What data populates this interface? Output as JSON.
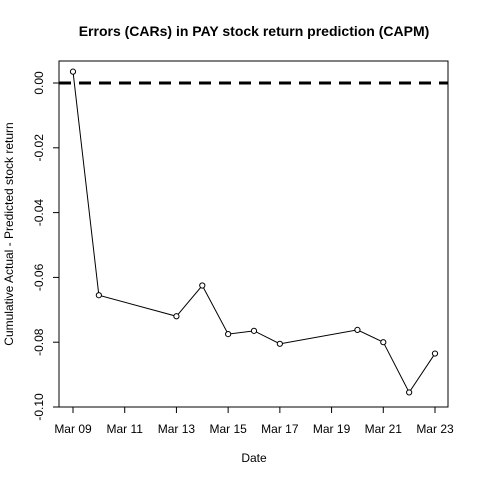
{
  "chart_data": {
    "type": "line",
    "title": "Errors (CARs) in PAY stock return prediction (CAPM)",
    "xlabel": "Date",
    "ylabel": "Cumulative Actual - Predicted stock return",
    "x_ticks": [
      "Mar 09",
      "Mar 11",
      "Mar 13",
      "Mar 15",
      "Mar 17",
      "Mar 19",
      "Mar 21",
      "Mar 23"
    ],
    "y_ticks": [
      "0.00",
      "-0.02",
      "-0.04",
      "-0.06",
      "-0.08",
      "-0.10"
    ],
    "y_tick_values": [
      0.0,
      -0.02,
      -0.04,
      -0.06,
      -0.08,
      -0.1
    ],
    "ylim": [
      -0.1,
      0.004
    ],
    "xlim": [
      "Mar 09",
      "Mar 23"
    ],
    "grid": false,
    "reference_line": {
      "y": 0.0,
      "style": "dashed"
    },
    "series": [
      {
        "x": [
          "Mar 09",
          "Mar 10",
          "Mar 13",
          "Mar 14",
          "Mar 15",
          "Mar 16",
          "Mar 17",
          "Mar 20",
          "Mar 21",
          "Mar 22",
          "Mar 23"
        ],
        "values": [
          0.0035,
          -0.0655,
          -0.072,
          -0.0625,
          -0.0775,
          -0.0765,
          -0.0805,
          -0.0762,
          -0.08,
          -0.0955,
          -0.0835
        ]
      }
    ]
  }
}
